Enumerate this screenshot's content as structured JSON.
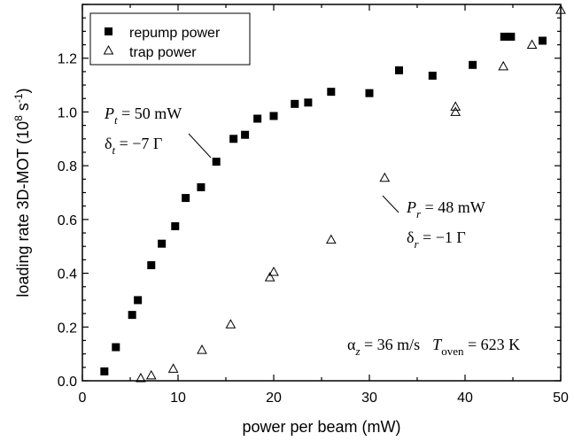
{
  "chart_data": {
    "type": "scatter",
    "xlabel": "power per beam (mW)",
    "ylabel_main": "loading rate 3D-MOT (10",
    "ylabel_exp1": "8",
    "ylabel_mid": " s",
    "ylabel_exp2": "-1",
    "ylabel_end": ")",
    "xlim": [
      0,
      50
    ],
    "ylim": [
      0,
      1.4
    ],
    "x_ticks": [
      "0",
      "10",
      "20",
      "30",
      "40",
      "50"
    ],
    "y_ticks": [
      "0.0",
      "0.2",
      "0.4",
      "0.6",
      "0.8",
      "1.0",
      "1.2"
    ],
    "legend_position": "top-left",
    "series": [
      {
        "name": "repump power",
        "marker": "filled-square",
        "points": [
          [
            2.3,
            0.035
          ],
          [
            3.5,
            0.125
          ],
          [
            5.2,
            0.245
          ],
          [
            5.8,
            0.3
          ],
          [
            7.2,
            0.43
          ],
          [
            8.3,
            0.51
          ],
          [
            9.7,
            0.575
          ],
          [
            10.8,
            0.68
          ],
          [
            12.4,
            0.72
          ],
          [
            14.0,
            0.815
          ],
          [
            15.8,
            0.9
          ],
          [
            17.0,
            0.915
          ],
          [
            18.3,
            0.975
          ],
          [
            20.0,
            0.985
          ],
          [
            22.2,
            1.03
          ],
          [
            23.6,
            1.035
          ],
          [
            26.0,
            1.075
          ],
          [
            30.0,
            1.07
          ],
          [
            33.1,
            1.155
          ],
          [
            36.6,
            1.135
          ],
          [
            40.8,
            1.175
          ],
          [
            44.1,
            1.28
          ],
          [
            44.8,
            1.28
          ],
          [
            48.1,
            1.265
          ]
        ]
      },
      {
        "name": "trap power",
        "marker": "open-triangle",
        "points": [
          [
            6.1,
            0.01
          ],
          [
            7.2,
            0.02
          ],
          [
            9.5,
            0.045
          ],
          [
            12.5,
            0.115
          ],
          [
            15.5,
            0.21
          ],
          [
            19.6,
            0.385
          ],
          [
            20.0,
            0.405
          ],
          [
            26.0,
            0.525
          ],
          [
            31.6,
            0.755
          ],
          [
            39.0,
            1.0
          ],
          [
            39.0,
            1.02
          ],
          [
            44.0,
            1.17
          ],
          [
            47.0,
            1.25
          ],
          [
            50.0,
            1.38
          ]
        ]
      }
    ],
    "annotations": {
      "trap_params": {
        "p_sym": "P",
        "p_sub": "t",
        "p_val": " = 50 mW",
        "d_sym": "δ",
        "d_sub": "t",
        "d_val": " = −7 Γ"
      },
      "repump_params": {
        "p_sym": "P",
        "p_sub": "r",
        "p_val": " = 48 mW",
        "d_sym": "δ",
        "d_sub": "r",
        "d_val": " = −1 Γ"
      },
      "conditions": {
        "a_sym": "α",
        "a_sub": "z",
        "a_val": " = 36 m/s",
        "t_sym": "T",
        "t_sub": "oven",
        "t_val": " = 623 K"
      }
    }
  }
}
